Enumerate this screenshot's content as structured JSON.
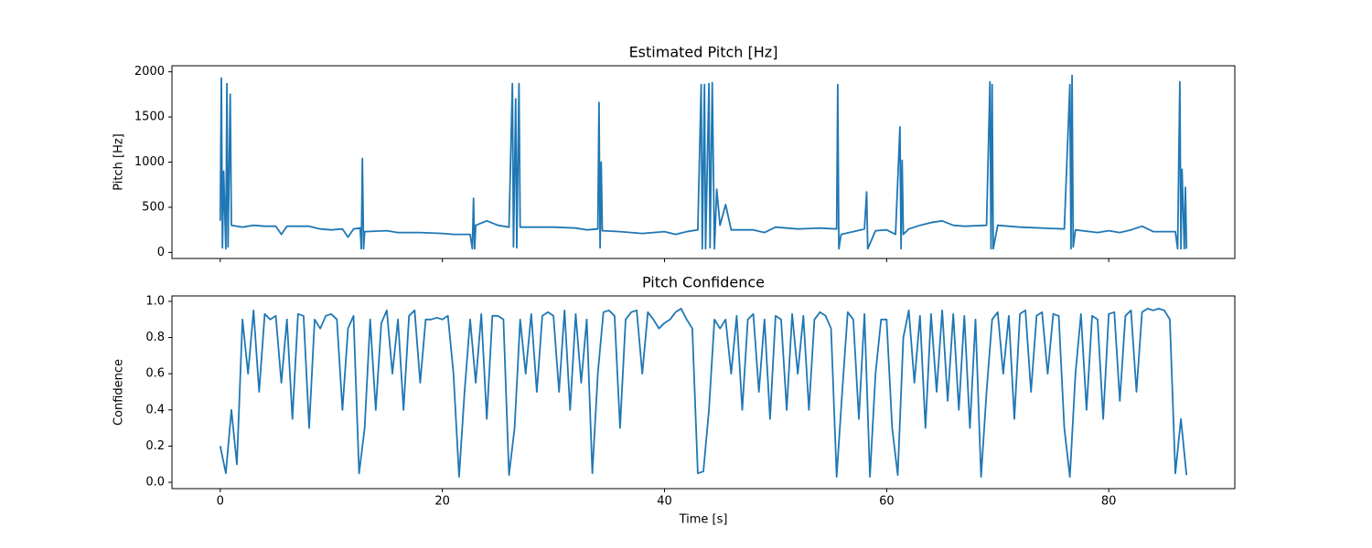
{
  "chart_data": [
    {
      "type": "line",
      "title": "Estimated Pitch [Hz]",
      "y_label": "Pitch [Hz]",
      "color": "#1f77b4",
      "xlim": [
        -4.35,
        91.35
      ],
      "xticks": [
        0,
        20,
        40,
        60,
        80
      ],
      "show_xtick_labels": false,
      "ylim": [
        -67,
        2067
      ],
      "yticks": [
        0,
        500,
        1000,
        1500,
        2000
      ],
      "x": [
        0,
        0.1,
        0.2,
        0.3,
        0.5,
        0.6,
        0.7,
        0.9,
        1.0,
        2,
        3,
        4,
        5,
        5.5,
        6,
        8,
        9,
        10,
        11,
        11.5,
        12,
        12.6,
        12.7,
        12.8,
        12.9,
        13,
        15,
        16,
        18,
        20,
        21,
        22.5,
        22.7,
        22.8,
        22.9,
        23,
        24,
        25,
        26,
        26.3,
        26.4,
        26.6,
        26.7,
        26.9,
        27,
        28,
        30,
        32,
        33,
        34,
        34.1,
        34.2,
        34.3,
        34.4,
        36,
        38,
        40,
        41,
        42,
        43,
        43.3,
        43.4,
        43.6,
        43.7,
        44,
        44.1,
        44.3,
        44.5,
        44.7,
        45,
        45.5,
        46,
        48,
        49,
        50,
        52,
        54,
        55.5,
        55.6,
        55.7,
        55.9,
        57,
        58,
        58.2,
        58.3,
        59,
        60,
        60.8,
        61.2,
        61.3,
        61.4,
        61.5,
        62,
        63,
        64,
        65,
        66,
        67,
        69,
        69.3,
        69.4,
        69.5,
        69.6,
        70,
        72,
        74,
        76,
        76.5,
        76.6,
        76.7,
        76.8,
        77,
        79,
        80,
        81,
        82,
        83,
        84,
        86,
        86.2,
        86.4,
        86.5,
        86.6,
        86.8,
        86.9,
        87
      ],
      "values": [
        350,
        1930,
        50,
        900,
        40,
        1870,
        60,
        1750,
        300,
        280,
        300,
        290,
        290,
        200,
        290,
        290,
        260,
        250,
        260,
        170,
        260,
        270,
        40,
        1040,
        40,
        230,
        240,
        220,
        220,
        210,
        200,
        200,
        40,
        600,
        40,
        300,
        350,
        300,
        280,
        1870,
        60,
        1700,
        50,
        1870,
        280,
        280,
        280,
        270,
        250,
        260,
        1660,
        50,
        1000,
        240,
        230,
        210,
        230,
        200,
        230,
        250,
        1860,
        40,
        1860,
        40,
        1870,
        50,
        1880,
        40,
        700,
        300,
        530,
        250,
        250,
        220,
        280,
        260,
        270,
        260,
        1860,
        40,
        200,
        230,
        260,
        670,
        40,
        240,
        250,
        200,
        1390,
        40,
        1020,
        200,
        260,
        300,
        330,
        350,
        300,
        290,
        300,
        1890,
        40,
        1860,
        40,
        300,
        280,
        270,
        260,
        1860,
        40,
        1960,
        60,
        250,
        220,
        240,
        220,
        250,
        290,
        230,
        230,
        40,
        1890,
        40,
        920,
        40,
        720,
        40
      ]
    },
    {
      "type": "line",
      "title": "Pitch Confidence",
      "y_label": "Confidence",
      "x_label": "Time [s]",
      "color": "#1f77b4",
      "xlim": [
        -4.35,
        91.35
      ],
      "xticks": [
        0,
        20,
        40,
        60,
        80
      ],
      "show_xtick_labels": true,
      "ylim": [
        -0.035,
        1.03
      ],
      "yticks": [
        {
          "value": 0,
          "label": "0.0"
        },
        0.2,
        0.4,
        0.6,
        0.8,
        {
          "value": 1,
          "label": "1.0"
        }
      ],
      "x": [
        0,
        0.5,
        1,
        1.5,
        2,
        2.5,
        3,
        3.5,
        4,
        4.5,
        5,
        5.5,
        6,
        6.5,
        7,
        7.5,
        8,
        8.5,
        9,
        9.5,
        10,
        10.5,
        11,
        11.5,
        12,
        12.5,
        13,
        13.5,
        14,
        14.5,
        15,
        15.5,
        16,
        16.5,
        17,
        17.5,
        18,
        18.5,
        19,
        19.5,
        20,
        20.5,
        21,
        21.5,
        22,
        22.5,
        23,
        23.5,
        24,
        24.5,
        25,
        25.5,
        26,
        26.5,
        27,
        27.5,
        28,
        28.5,
        29,
        29.5,
        30,
        30.5,
        31,
        31.5,
        32,
        32.5,
        33,
        33.5,
        34,
        34.5,
        35,
        35.5,
        36,
        36.5,
        37,
        37.5,
        38,
        38.5,
        39,
        39.5,
        40,
        40.5,
        41,
        41.5,
        42,
        42.5,
        43,
        43.5,
        44,
        44.5,
        45,
        45.5,
        46,
        46.5,
        47,
        47.5,
        48,
        48.5,
        49,
        49.5,
        50,
        50.5,
        51,
        51.5,
        52,
        52.5,
        53,
        53.5,
        54,
        54.5,
        55,
        55.5,
        56,
        56.5,
        57,
        57.5,
        58,
        58.5,
        59,
        59.5,
        60,
        60.5,
        61,
        61.5,
        62,
        62.5,
        63,
        63.5,
        64,
        64.5,
        65,
        65.5,
        66,
        66.5,
        67,
        67.5,
        68,
        68.5,
        69,
        69.5,
        70,
        70.5,
        71,
        71.5,
        72,
        72.5,
        73,
        73.5,
        74,
        74.5,
        75,
        75.5,
        76,
        76.5,
        77,
        77.5,
        78,
        78.5,
        79,
        79.5,
        80,
        80.5,
        81,
        81.5,
        82,
        82.5,
        83,
        83.5,
        84,
        84.5,
        85,
        85.5,
        86,
        86.5,
        87
      ],
      "values": [
        0.2,
        0.05,
        0.4,
        0.1,
        0.9,
        0.6,
        0.95,
        0.5,
        0.93,
        0.9,
        0.92,
        0.55,
        0.9,
        0.35,
        0.93,
        0.92,
        0.3,
        0.9,
        0.85,
        0.92,
        0.93,
        0.9,
        0.4,
        0.85,
        0.92,
        0.05,
        0.3,
        0.9,
        0.4,
        0.88,
        0.95,
        0.6,
        0.9,
        0.4,
        0.92,
        0.95,
        0.55,
        0.9,
        0.9,
        0.91,
        0.9,
        0.92,
        0.6,
        0.03,
        0.5,
        0.9,
        0.55,
        0.93,
        0.35,
        0.92,
        0.92,
        0.9,
        0.04,
        0.3,
        0.9,
        0.6,
        0.93,
        0.5,
        0.92,
        0.94,
        0.92,
        0.5,
        0.95,
        0.4,
        0.93,
        0.55,
        0.9,
        0.05,
        0.6,
        0.94,
        0.95,
        0.92,
        0.3,
        0.9,
        0.94,
        0.95,
        0.6,
        0.94,
        0.9,
        0.85,
        0.88,
        0.9,
        0.94,
        0.96,
        0.9,
        0.85,
        0.05,
        0.06,
        0.4,
        0.9,
        0.85,
        0.9,
        0.6,
        0.92,
        0.4,
        0.9,
        0.93,
        0.5,
        0.9,
        0.35,
        0.92,
        0.9,
        0.4,
        0.93,
        0.6,
        0.92,
        0.4,
        0.9,
        0.94,
        0.92,
        0.85,
        0.03,
        0.5,
        0.94,
        0.9,
        0.35,
        0.93,
        0.03,
        0.6,
        0.9,
        0.9,
        0.3,
        0.04,
        0.8,
        0.95,
        0.55,
        0.92,
        0.3,
        0.93,
        0.5,
        0.95,
        0.45,
        0.93,
        0.4,
        0.92,
        0.3,
        0.9,
        0.03,
        0.5,
        0.9,
        0.94,
        0.6,
        0.92,
        0.35,
        0.93,
        0.95,
        0.5,
        0.92,
        0.94,
        0.6,
        0.93,
        0.92,
        0.3,
        0.03,
        0.6,
        0.93,
        0.4,
        0.92,
        0.9,
        0.35,
        0.93,
        0.94,
        0.45,
        0.92,
        0.95,
        0.5,
        0.94,
        0.96,
        0.95,
        0.96,
        0.95,
        0.9,
        0.05,
        0.35,
        0.04
      ]
    }
  ]
}
